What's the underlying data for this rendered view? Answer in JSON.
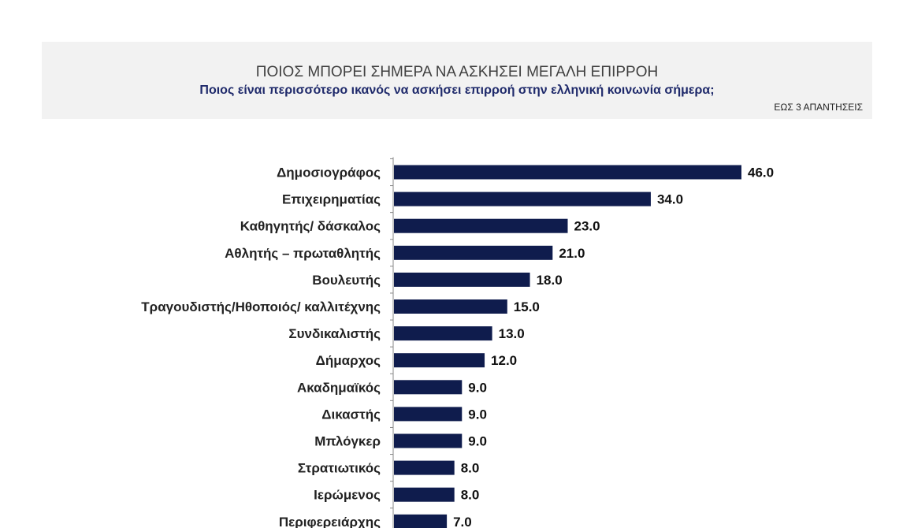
{
  "header": {
    "title": "ΠΟΙΟΣ ΜΠΟΡΕΙ  ΣΗΜΕΡΑ ΝΑ ΑΣΚΗΣΕΙ ΜΕΓΑΛΗ ΕΠΙΡΡΟΗ",
    "subtitle": "Ποιος είναι περισσότερο ικανός να ασκήσει επιρροή στην ελληνική κοινωνία σήμερα;",
    "note": "ΕΩΣ 3 ΑΠΑΝΤΗΣΕΙΣ"
  },
  "chart_data": {
    "type": "bar",
    "orientation": "horizontal",
    "title": "ΠΟΙΟΣ ΜΠΟΡΕΙ  ΣΗΜΕΡΑ ΝΑ ΑΣΚΗΣΕΙ ΜΕΓΑΛΗ ΕΠΙΡΡΟΗ",
    "subtitle": "Ποιος είναι περισσότερο ικανός να ασκήσει επιρροή στην ελληνική κοινωνία σήμερα;",
    "categories": [
      "Δημοσιογράφος",
      "Επιχειρηματίας",
      "Καθηγητής/ δάσκαλος",
      "Αθλητής – πρωταθλητής",
      "Βουλευτής",
      "Τραγουδιστής/Ηθοποιός/ καλλιτέχνης",
      "Συνδικαλιστής",
      "Δήμαρχος",
      "Ακαδημαϊκός",
      "Δικαστής",
      "Μπλόγκερ",
      "Στρατιωτικός",
      "Ιερώμενος",
      "Περιφερειάρχης"
    ],
    "values": [
      46.0,
      34.0,
      23.0,
      21.0,
      18.0,
      15.0,
      13.0,
      12.0,
      9.0,
      9.0,
      9.0,
      8.0,
      8.0,
      7.0
    ],
    "value_labels": [
      "46.0",
      "34.0",
      "23.0",
      "21.0",
      "18.0",
      "15.0",
      "13.0",
      "12.0",
      "9.0",
      "9.0",
      "9.0",
      "8.0",
      "8.0",
      "7.0"
    ],
    "xlim": [
      0,
      46
    ],
    "bar_color": "#0f1c4d",
    "grid": false,
    "legend": "none"
  }
}
